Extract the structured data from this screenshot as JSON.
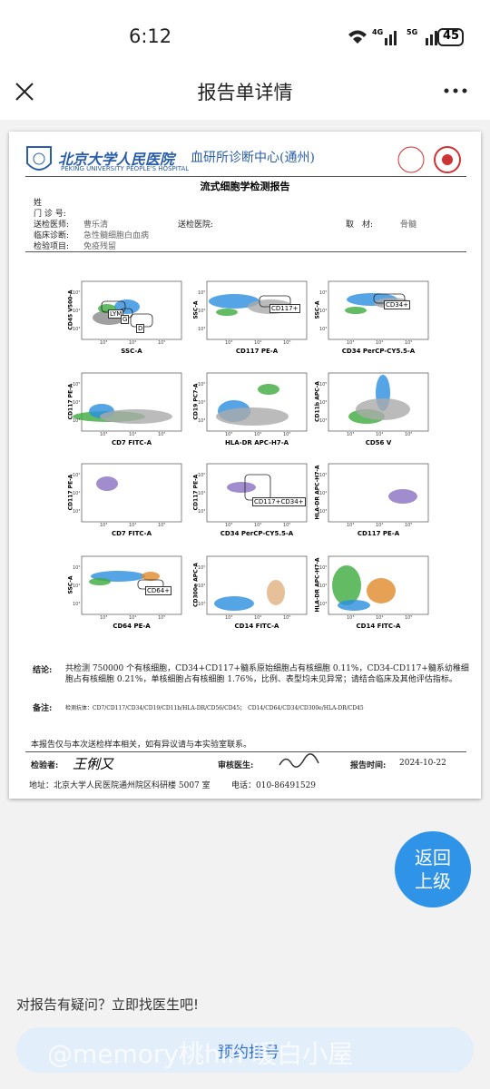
{
  "status_bar": {
    "time": "6:12",
    "network_1": "4G",
    "network_2": "5G",
    "battery": "45"
  },
  "header": {
    "title": "报告单详情"
  },
  "report": {
    "hospital": "北京大学人民医院",
    "center": "血研所诊断中心(通州)",
    "hospital_en": "PEKING UNIVERSITY PEOPLE'S HOSPITAL",
    "title": "流式细胞学检测报告",
    "fields": [
      {
        "label": "姓"
      },
      {
        "label": "门 诊 号:"
      },
      {
        "label": "送检医师:",
        "value": "曹乐清"
      },
      {
        "label": "送检医院:"
      },
      {
        "label": "临床诊断:",
        "value": "急性髓细胞白血病"
      },
      {
        "label": "检验项目:",
        "value": "免疫残留"
      },
      {
        "label": "取　材:",
        "value": "骨髓"
      }
    ],
    "plot_ticks": [
      "10³",
      "10⁴",
      "10⁵"
    ],
    "plots": [
      {
        "y_label": "CD45 V500-A",
        "x_label": "SSC-A",
        "gates": [
          "LYM",
          "G",
          "D"
        ]
      },
      {
        "y_label": "SSC-A",
        "x_label": "CD117 PE-A",
        "gates": [
          "CD117+"
        ]
      },
      {
        "y_label": "SSC-A",
        "x_label": "CD34 PerCP-CY5.5-A",
        "gates": [
          "CD34+"
        ]
      },
      {
        "y_label": "CD117 PE-A",
        "x_label": "CD7 FITC-A"
      },
      {
        "y_label": "CD19 PC7-A",
        "x_label": "HLA-DR APC-H7-A"
      },
      {
        "y_label": "CD11b APC-A",
        "x_label": "CD56 V"
      },
      {
        "y_label": "CD117 PE-A",
        "x_label": "CD7 FITC-A"
      },
      {
        "y_label": "CD117 PE-A",
        "x_label": "CD34 PerCP-CY5.5-A",
        "gates": [
          "CD117+CD34+"
        ]
      },
      {
        "y_label": "HLA-DR APC-H7-A",
        "x_label": "CD117 PE-A"
      },
      {
        "y_label": "SSC-A",
        "x_label": "CD64 PE-A",
        "gates": [
          "CD64+"
        ]
      },
      {
        "y_label": "CD300e APC-A",
        "x_label": "CD14 FITC-A"
      },
      {
        "y_label": "HLA-DR APC-H7-A",
        "x_label": "CD14 FITC-A"
      }
    ],
    "conclusion_label": "结论:",
    "conclusion": "共检测 750000 个有核细胞，CD34+CD117+髓系原始细胞占有核细胞 0.11%，CD34-CD117+髓系幼稚细胞占有核细胞 0.21%，单核细胞占有核细胞 1.76%，比例、表型均未见异常；请结合临床及其他评估指标。",
    "remark_label": "备注:",
    "remark": "检测抗体：CD7/CD117/CD34/CD19/CD11b/HLA-DR/CD56/CD45；　CD14/CD64/CD34/CD300e/HLA-DR/CD45",
    "disclaimer": "本报告仅与本次送检样本相关，如有异议请与本实验室联系。",
    "tester_label": "检验者:",
    "tester": "王俐又",
    "reviewer_label": "审核医生:",
    "report_time_label": "报告时间:",
    "report_time": "2024-10-22",
    "address": "地址：北京大学人民医院通州院区科研楼 5007 室",
    "phone": "电话：010-86491529"
  },
  "float_button": [
    "返回",
    "上级"
  ],
  "footer": {
    "question": "对报告有疑问？立即找医生吧!",
    "button": "预约挂号",
    "watermark": "@memory桃hin 暖白小屋"
  }
}
